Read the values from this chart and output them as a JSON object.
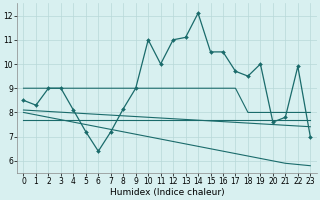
{
  "xlabel": "Humidex (Indice chaleur)",
  "background_color": "#d8f0f0",
  "grid_color": "#b8d8d8",
  "line_color": "#1a6b6b",
  "x": [
    0,
    1,
    2,
    3,
    4,
    5,
    6,
    7,
    8,
    9,
    10,
    11,
    12,
    13,
    14,
    15,
    16,
    17,
    18,
    19,
    20,
    21,
    22,
    23
  ],
  "y_main": [
    8.5,
    8.3,
    9.0,
    9.0,
    8.1,
    7.2,
    6.4,
    7.2,
    8.15,
    9.0,
    11.0,
    10.0,
    11.0,
    11.1,
    12.1,
    10.5,
    10.5,
    9.7,
    9.5,
    10.0,
    7.6,
    7.8,
    9.9,
    7.0
  ],
  "y_flat_top": [
    9.0,
    9.0,
    9.0,
    9.0,
    9.0,
    9.0,
    9.0,
    9.0,
    9.0,
    9.0,
    9.0,
    9.0,
    9.0,
    9.0,
    9.0,
    9.0,
    9.0,
    9.0,
    8.0,
    8.0,
    8.0,
    8.0,
    8.0,
    8.0
  ],
  "y_flat_mid": [
    7.7,
    7.7,
    7.7,
    7.7,
    7.7,
    7.7,
    7.7,
    7.7,
    7.7,
    7.7,
    7.7,
    7.7,
    7.7,
    7.7,
    7.7,
    7.7,
    7.7,
    7.7,
    7.7,
    7.7,
    7.7,
    7.7,
    7.7,
    7.7
  ],
  "y_trend_steep": [
    8.0,
    7.9,
    7.8,
    7.7,
    7.6,
    7.5,
    7.4,
    7.3,
    7.2,
    7.1,
    7.0,
    6.9,
    6.8,
    6.7,
    6.6,
    6.5,
    6.4,
    6.3,
    6.2,
    6.1,
    6.0,
    5.9,
    5.85,
    5.8
  ],
  "y_trend_shallow": [
    8.1,
    8.07,
    8.04,
    8.01,
    7.98,
    7.95,
    7.92,
    7.89,
    7.86,
    7.83,
    7.8,
    7.77,
    7.74,
    7.71,
    7.68,
    7.65,
    7.62,
    7.59,
    7.56,
    7.53,
    7.5,
    7.47,
    7.44,
    7.41
  ],
  "ylim": [
    5.5,
    12.5
  ],
  "yticks": [
    6,
    7,
    8,
    9,
    10,
    11,
    12
  ],
  "xticks": [
    0,
    1,
    2,
    3,
    4,
    5,
    6,
    7,
    8,
    9,
    10,
    11,
    12,
    13,
    14,
    15,
    16,
    17,
    18,
    19,
    20,
    21,
    22,
    23
  ],
  "figw": 3.2,
  "figh": 2.0,
  "dpi": 100
}
